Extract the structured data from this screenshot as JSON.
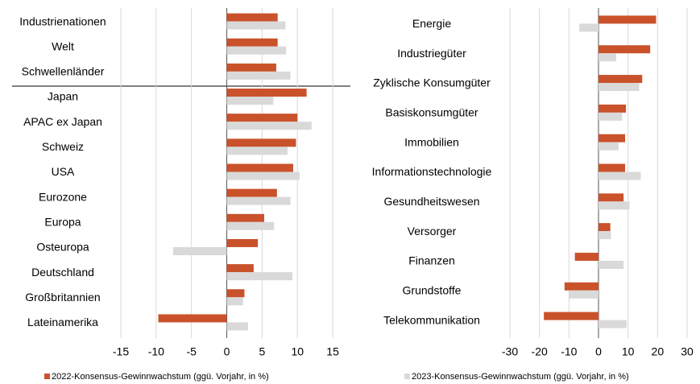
{
  "chart_data": [
    {
      "type": "barh",
      "categories": [
        "Industrienationen",
        "Welt",
        "Schwellenländer",
        "Japan",
        "APAC ex Japan",
        "Schweiz",
        "USA",
        "Eurozone",
        "Europa",
        "Osteuropa",
        "Deutschland",
        "Großbritannien",
        "Lateinamerika"
      ],
      "series": [
        {
          "color": "#c9522b",
          "values": [
            7.2,
            7.2,
            7.0,
            11.3,
            10.0,
            9.8,
            9.4,
            7.1,
            5.3,
            4.4,
            3.8,
            2.5,
            -9.7
          ]
        },
        {
          "color": "#d9d9d9",
          "values": [
            8.3,
            8.4,
            9.0,
            6.6,
            12.0,
            8.6,
            10.3,
            9.0,
            6.7,
            -7.6,
            9.3,
            2.3,
            3.0
          ]
        }
      ],
      "xlim": [
        -15,
        17.5
      ],
      "xticks": [
        -15,
        -10,
        -5,
        0,
        5,
        10,
        15
      ],
      "grid": true
    },
    {
      "type": "barh",
      "categories": [
        "Energie",
        "Industriegüter",
        "Zyklische Konsumgüter",
        "Basiskonsumgüter",
        "Immobilien",
        "Informationstechnologie",
        "Gesundheitswesen",
        "Versorger",
        "Finanzen",
        "Grundstoffe",
        "Telekommunikation"
      ],
      "series": [
        {
          "color": "#c9522b",
          "values": [
            19.5,
            17.5,
            14.8,
            9.3,
            9.0,
            9.0,
            8.5,
            4.0,
            -8.0,
            -11.5,
            -18.5
          ]
        },
        {
          "color": "#d9d9d9",
          "values": [
            -6.5,
            6.0,
            13.8,
            8.0,
            6.8,
            14.3,
            10.5,
            4.2,
            8.5,
            -10.0,
            9.5
          ]
        }
      ],
      "xlim": [
        -30,
        30
      ],
      "xticks": [
        -30,
        -20,
        -10,
        0,
        10,
        20,
        30
      ],
      "grid": true
    }
  ],
  "legend": [
    {
      "name": "2022-Konsensus-Gewinnwachstum (ggü. Vorjahr, in %)",
      "color": "#c9522b"
    },
    {
      "name": "2023-Konsensus-Gewinnwachstum (ggü. Vorjahr, in %)",
      "color": "#d9d9d9"
    }
  ]
}
